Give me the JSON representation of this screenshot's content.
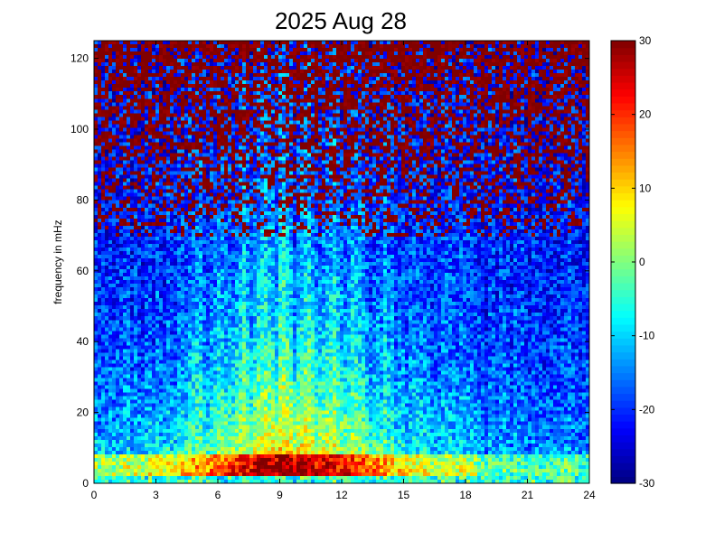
{
  "chart_data": {
    "type": "heatmap",
    "title": "2025 Aug 28",
    "xlabel": "",
    "ylabel": "frequency in mHz",
    "xlim": [
      0,
      24
    ],
    "ylim": [
      0,
      125
    ],
    "x_ticks": [
      0,
      3,
      6,
      9,
      12,
      15,
      18,
      21,
      24
    ],
    "y_ticks": [
      0,
      20,
      40,
      60,
      80,
      100,
      120
    ],
    "colorbar": {
      "colormap": "jet",
      "clim": [
        -30,
        30
      ],
      "ticks": [
        -30,
        -20,
        -10,
        0,
        10,
        20,
        30
      ]
    },
    "grid": false
  }
}
